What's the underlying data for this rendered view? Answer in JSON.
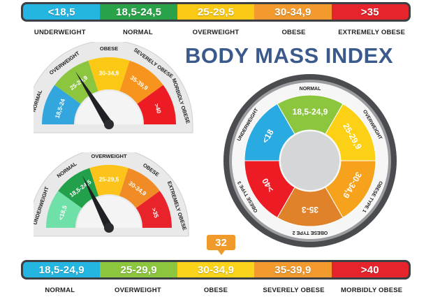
{
  "title": "BODY MASS INDEX",
  "top_scale": {
    "segments": [
      {
        "label": "<18,5",
        "color": "#25b5e1"
      },
      {
        "label": "18,5-24,5",
        "color": "#2aa24a"
      },
      {
        "label": "25-29,5",
        "color": "#f9c916"
      },
      {
        "label": "30-34,9",
        "color": "#f29a2e"
      },
      {
        "label": ">35",
        "color": "#e5242c"
      }
    ],
    "categories": [
      "UNDERWEIGHT",
      "NORMAL",
      "OVERWEIGHT",
      "OBESE",
      "EXTREMELY OBESE"
    ]
  },
  "gauge1": {
    "segments": [
      {
        "range": "18,5-24",
        "category": "NORMAL",
        "color": "#32a6dd"
      },
      {
        "range": "25-29,9",
        "category": "OVERWEIGHT",
        "color": "#8cc63f"
      },
      {
        "range": "30-34,9",
        "category": "OBESE",
        "color": "#fbc815"
      },
      {
        "range": "35-39,9",
        "category": "SEVERELY OBESE",
        "color": "#f7941d"
      },
      {
        "range": ">40",
        "category": "MORBIDLY OBESE",
        "color": "#ed1c24"
      }
    ],
    "needle_segment_index": 1.6
  },
  "gauge2": {
    "segments": [
      {
        "range": "<18,5",
        "category": "UNDERWEIGHT",
        "color": "#6fe0a7"
      },
      {
        "range": "18,5-24,5",
        "category": "NORMAL",
        "color": "#22a04b"
      },
      {
        "range": "25-29,5",
        "category": "OVERWEIGHT",
        "color": "#fcc31b"
      },
      {
        "range": "30-34,9",
        "category": "OBESE",
        "color": "#f08b25"
      },
      {
        "range": ">35",
        "category": "EXTREMELY OBESE",
        "color": "#e8232a"
      }
    ],
    "needle_segment_index": 1.75
  },
  "circle_gauge": {
    "segments": [
      {
        "range": "18,5-24,9",
        "category": "NORMAL",
        "color": "#8cc63f"
      },
      {
        "range": "25-29,9",
        "category": "OVERWEIGHT",
        "color": "#fbd015"
      },
      {
        "range": "30-34,9",
        "category": "OBESE TYPE 1",
        "color": "#f7a21d"
      },
      {
        "range": "35-3",
        "category": "OBESE TYPE 2",
        "color": "#e0822a"
      },
      {
        "range": ">40",
        "category": "OBESE TYPE 3",
        "color": "#ed1c24"
      },
      {
        "range": "<18",
        "category": "UNDERWEIGHT",
        "color": "#29aae1"
      }
    ]
  },
  "callout_value": "32",
  "bottom_scale": {
    "segments": [
      {
        "label": "18,5-24,9",
        "color": "#25b5e1"
      },
      {
        "label": "25-29,9",
        "color": "#8cc63f"
      },
      {
        "label": "30-34,9",
        "color": "#f9d41a"
      },
      {
        "label": "35-39,9",
        "color": "#f29a2e"
      },
      {
        "label": ">40",
        "color": "#e5242c"
      }
    ],
    "categories": [
      "NORMAL",
      "OVERWEIGHT",
      "OBESE",
      "SEVERELY OBESE",
      "MORBIDLY OBESE"
    ]
  }
}
